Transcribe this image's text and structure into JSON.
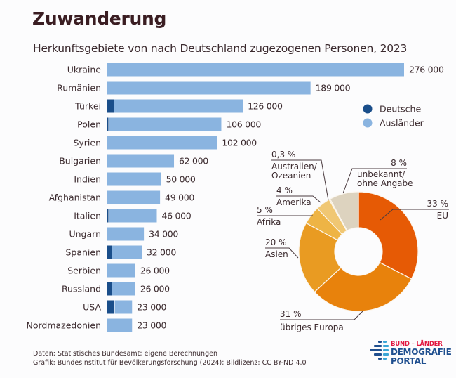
{
  "header": {
    "title": "Zuwanderung",
    "subtitle": "Herkunftsgebiete von nach Deutschland zugezogenen Personen, 2023"
  },
  "colors": {
    "deutsche": "#1a4e8a",
    "auslaender": "#8ab4e0",
    "text": "#3b2a2e"
  },
  "chart_data": [
    {
      "type": "bar",
      "orientation": "horizontal",
      "stacked": true,
      "title": "Herkunftsgebiete von nach Deutschland zugezogenen Personen, 2023",
      "categories": [
        "Ukraine",
        "Rumänien",
        "Türkei",
        "Polen",
        "Syrien",
        "Bulgarien",
        "Indien",
        "Afghanistan",
        "Italien",
        "Ungarn",
        "Spanien",
        "Serbien",
        "Russland",
        "USA",
        "Nordmazedonien"
      ],
      "totals": [
        276000,
        189000,
        126000,
        106000,
        102000,
        62000,
        50000,
        49000,
        46000,
        34000,
        32000,
        26000,
        26000,
        23000,
        23000
      ],
      "total_labels": [
        "276 000",
        "189 000",
        "126 000",
        "106 000",
        "102 000",
        "62 000",
        "50 000",
        "49 000",
        "46 000",
        "34 000",
        "32 000",
        "26 000",
        "26 000",
        "23 000",
        "23 000"
      ],
      "series": [
        {
          "name": "Deutsche",
          "color": "#1a4e8a",
          "values": [
            0,
            0,
            6000,
            1000,
            0,
            0,
            0,
            0,
            1000,
            0,
            4000,
            0,
            4000,
            6500,
            0
          ]
        },
        {
          "name": "Ausländer",
          "color": "#8ab4e0",
          "values": [
            276000,
            189000,
            120000,
            105000,
            102000,
            62000,
            50000,
            49000,
            45000,
            34000,
            28000,
            26000,
            22000,
            16500,
            23000
          ]
        }
      ],
      "legend": {
        "position": "right",
        "entries": [
          "Deutsche",
          "Ausländer"
        ]
      },
      "xlim": [
        0,
        276000
      ],
      "grid": false
    },
    {
      "type": "pie",
      "variant": "donut",
      "slices": [
        {
          "label": "EU",
          "pct_label": "33 %",
          "value": 33,
          "color": "#e65a05"
        },
        {
          "label": "übriges Europa",
          "pct_label": "31 %",
          "value": 31,
          "color": "#e8820c"
        },
        {
          "label": "Asien",
          "pct_label": "20 %",
          "value": 20,
          "color": "#e99b22"
        },
        {
          "label": "Afrika",
          "pct_label": "5 %",
          "value": 5,
          "color": "#eeb445"
        },
        {
          "label": "Amerika",
          "pct_label": "4 %",
          "value": 4,
          "color": "#f0c773"
        },
        {
          "label": "Australien/ Ozeanien",
          "label_lines": [
            "Australien/",
            "Ozeanien"
          ],
          "pct_label": "0,3 %",
          "value": 0.3,
          "color": "#f4dfb2"
        },
        {
          "label": "unbekannt/ ohne Angabe",
          "label_lines": [
            "unbekannt/",
            "ohne Angabe"
          ],
          "pct_label": "8 %",
          "value": 8,
          "color": "#ddd3bf"
        }
      ]
    }
  ],
  "footer": {
    "source": "Daten: Statistisches Bundesamt; eigene Berechnungen",
    "credit": "Grafik: Bundesinstitut für Bevölkerungsforschung (2024); Bildlizenz: CC BY-ND 4.0"
  },
  "logo": {
    "top": "BUND – LÄNDER",
    "line1": "DEMOGRAFIE",
    "line2": "PORTAL"
  }
}
